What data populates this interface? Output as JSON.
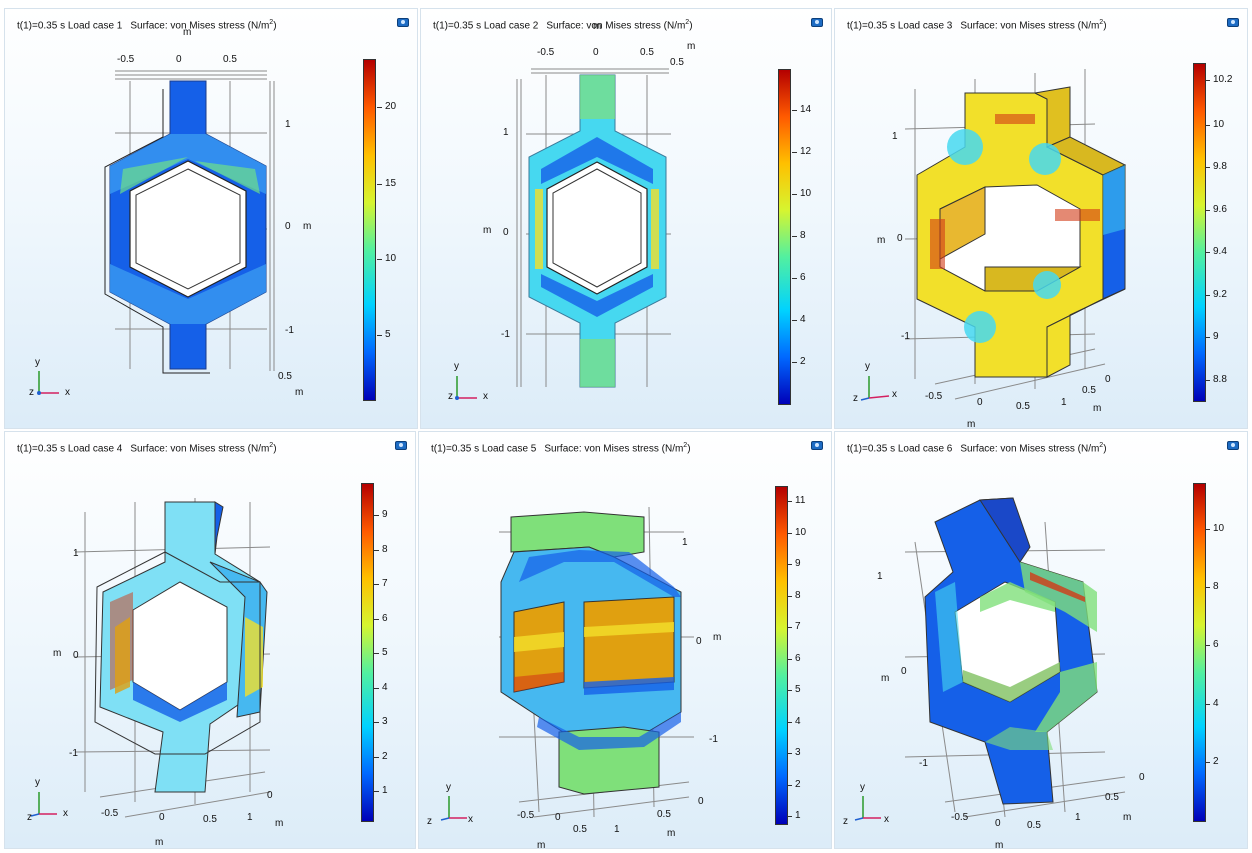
{
  "panels": [
    {
      "time": "t(1)=0.35 s",
      "load_case": "Load case 1",
      "surface": "Surface: von Mises stress (N/m",
      "unit_sup": "2",
      "unit_close": ")",
      "colorbar_ticks": [
        "20",
        "15",
        "10",
        "5"
      ],
      "axis_labels": [
        "-0.5",
        "0",
        "0.5",
        "m",
        "1",
        "0",
        "m",
        "-1",
        "0.5",
        "m"
      ],
      "triad": {
        "y": "y",
        "x": "x",
        "z": "z"
      }
    },
    {
      "time": "t(1)=0.35 s",
      "load_case": "Load case 2",
      "surface": "Surface: von Mises stress (N/m",
      "unit_sup": "2",
      "unit_close": ")",
      "colorbar_ticks": [
        "14",
        "12",
        "10",
        "8",
        "6",
        "4",
        "2"
      ],
      "axis_labels": [
        "-0.5",
        "0",
        "0.5",
        "0.5",
        "m",
        "m",
        "1",
        "m",
        "0",
        "-1"
      ],
      "triad": {
        "y": "y",
        "x": "x",
        "z": "z"
      }
    },
    {
      "time": "t(1)=0.35 s",
      "load_case": "Load case 3",
      "surface": "Surface: von Mises stress (N/m",
      "unit_sup": "2",
      "unit_close": ")",
      "colorbar_ticks": [
        "10.2",
        "10",
        "9.8",
        "9.6",
        "9.4",
        "9.2",
        "9",
        "8.8"
      ],
      "axis_labels": [
        "1",
        "m",
        "0",
        "-1",
        "-0.5",
        "0",
        "0.5",
        "1",
        "0",
        "0.5",
        "m",
        "m"
      ],
      "triad": {
        "y": "y",
        "x": "x",
        "z": "z"
      }
    },
    {
      "time": "t(1)=0.35 s",
      "load_case": "Load case 4",
      "surface": "Surface: von Mises stress (N/m",
      "unit_sup": "2",
      "unit_close": ")",
      "colorbar_ticks": [
        "9",
        "8",
        "7",
        "6",
        "5",
        "4",
        "3",
        "2",
        "1"
      ],
      "axis_labels": [
        "1",
        "m",
        "0",
        "-1",
        "-0.5",
        "0",
        "0.5",
        "1",
        "m",
        "0",
        "m"
      ],
      "triad": {
        "y": "y",
        "x": "x",
        "z": "z"
      }
    },
    {
      "time": "t(1)=0.35 s",
      "load_case": "Load case 5",
      "surface": "Surface: von Mises stress (N/m",
      "unit_sup": "2",
      "unit_close": ")",
      "colorbar_ticks": [
        "11",
        "10",
        "9",
        "8",
        "7",
        "6",
        "5",
        "4",
        "3",
        "2",
        "1"
      ],
      "axis_labels": [
        "1",
        "0",
        "m",
        "-1",
        "0",
        "0.5",
        "-0.5",
        "0",
        "0.5",
        "1",
        "m",
        "m"
      ],
      "triad": {
        "y": "y",
        "x": "x",
        "z": "z"
      }
    },
    {
      "time": "t(1)=0.35 s",
      "load_case": "Load case 6",
      "surface": "Surface: von Mises stress (N/m",
      "unit_sup": "2",
      "unit_close": ")",
      "colorbar_ticks": [
        "10",
        "8",
        "6",
        "4",
        "2"
      ],
      "axis_labels": [
        "1",
        "m",
        "0",
        "-1",
        "0",
        "0.5",
        "m",
        "1",
        "-0.5",
        "0",
        "0.5",
        "m"
      ],
      "triad": {
        "y": "y",
        "x": "x",
        "z": "z"
      }
    }
  ],
  "colors": {
    "blue": "#1560e8",
    "cyan": "#46d8f0",
    "green": "#7fe07a",
    "yellow": "#f2e02a",
    "orange": "#e0a010",
    "red": "#d23a16",
    "axis_green": "#2a9a2a",
    "axis_red": "#d42060",
    "axis_blue": "#2060d0"
  },
  "icons": {
    "snapshot": "camera-icon",
    "triad": "axis-triad-icon"
  }
}
